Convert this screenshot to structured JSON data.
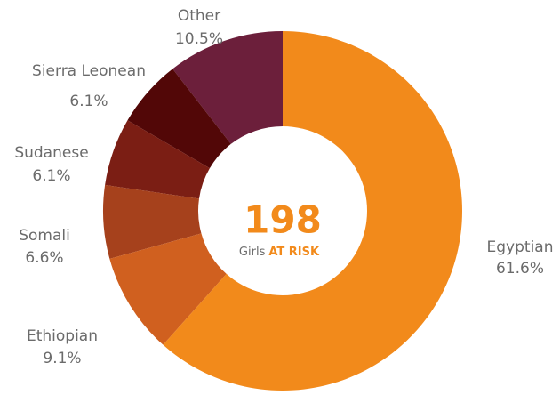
{
  "chart_data": {
    "type": "pie",
    "donut": true,
    "categories": [
      "Egyptian",
      "Ethiopian",
      "Somali",
      "Sudanese",
      "Sierra Leonean",
      "Other"
    ],
    "values": [
      61.6,
      9.1,
      6.6,
      6.1,
      6.1,
      10.5
    ],
    "value_labels": [
      "61.6%",
      "9.1%",
      "6.6%",
      "6.1%",
      "6.1%",
      "10.5%"
    ],
    "colors": [
      "#f28a1b",
      "#d0601f",
      "#a6411c",
      "#7b1e14",
      "#520707",
      "#6c1f3b"
    ],
    "center_value": 198,
    "center_text": [
      "Girls",
      "AT RISK"
    ]
  }
}
